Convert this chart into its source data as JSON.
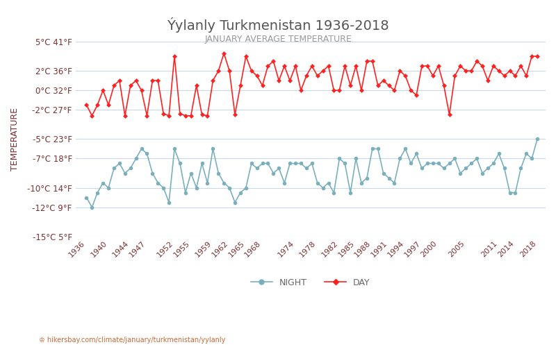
{
  "title": "Ýylanly Turkmenistan 1936-2018",
  "subtitle": "JANUARY AVERAGE TEMPERATURE",
  "ylabel": "TEMPERATURE",
  "url_text": "hikersbay.com/climate/january/turkmenistan/yylanly",
  "background_color": "#ffffff",
  "plot_bg_color": "#ffffff",
  "grid_color": "#c8d8e8",
  "day_color": "#ff2020",
  "night_color": "#7ab0be",
  "title_color": "#555555",
  "subtitle_color": "#888888",
  "ylabel_color": "#7a3030",
  "tick_label_color": "#7a3030",
  "legend_night_color": "#7ab0be",
  "legend_day_color": "#ff2020",
  "ylim": [
    -15,
    5
  ],
  "yticks_celsius": [
    -15,
    -12,
    -10,
    -7,
    -5,
    -2,
    0,
    2,
    5
  ],
  "ytick_labels": [
    "-15°C 5°F",
    "-12°C 9°F",
    "-10°C 14°F",
    "-7°C 18°F",
    "-5°C 23°F",
    "-2°C 27°F",
    "0°C 32°F",
    "2°C 36°F",
    "5°C 41°F"
  ],
  "xtick_years": [
    1936,
    1940,
    1944,
    1947,
    1952,
    1955,
    1959,
    1962,
    1965,
    1968,
    1974,
    1978,
    1982,
    1985,
    1988,
    1991,
    1994,
    1997,
    2000,
    2005,
    2011,
    2014,
    2018
  ],
  "day_years": [
    1936,
    1937,
    1938,
    1939,
    1940,
    1941,
    1942,
    1943,
    1944,
    1945,
    1946,
    1947,
    1948,
    1949,
    1950,
    1951,
    1952,
    1953,
    1954,
    1955,
    1956,
    1957,
    1958,
    1959,
    1960,
    1961,
    1962,
    1963,
    1964,
    1965,
    1966,
    1967,
    1968,
    1969,
    1970,
    1971,
    1972,
    1973,
    1974,
    1975,
    1976,
    1977,
    1978,
    1979,
    1980,
    1981,
    1982,
    1983,
    1984,
    1985,
    1986,
    1987,
    1988,
    1989,
    1990,
    1991,
    1992,
    1993,
    1994,
    1995,
    1996,
    1997,
    1998,
    1999,
    2000,
    2001,
    2002,
    2003,
    2004,
    2005,
    2006,
    2007,
    2008,
    2009,
    2010,
    2011,
    2012,
    2013,
    2014,
    2015,
    2016,
    2017,
    2018
  ],
  "day_temps": [
    -1.5,
    -2.6,
    -1.5,
    0.0,
    -1.5,
    0.5,
    1.0,
    -2.6,
    0.5,
    1.0,
    0.0,
    -2.6,
    1.0,
    1.0,
    -2.4,
    -2.6,
    3.5,
    -2.4,
    -2.6,
    -2.6,
    0.5,
    -2.5,
    -2.6,
    1.0,
    2.0,
    3.8,
    2.0,
    -2.5,
    0.5,
    3.5,
    2.0,
    1.5,
    0.5,
    2.5,
    3.0,
    1.0,
    2.5,
    1.0,
    2.5,
    0.0,
    1.5,
    2.5,
    1.5,
    2.0,
    2.5,
    0.0,
    0.0,
    2.5,
    0.5,
    2.5,
    0.0,
    3.0,
    3.0,
    0.5,
    1.0,
    0.5,
    0.0,
    2.0,
    1.5,
    0.0,
    -0.5,
    2.5,
    2.5,
    1.5,
    2.5,
    0.5,
    -2.5,
    1.5,
    2.5,
    2.0,
    2.0,
    3.0,
    2.5,
    1.0,
    2.5,
    2.0,
    1.5,
    2.0,
    1.5,
    2.5,
    1.5,
    3.5,
    3.5
  ],
  "night_years": [
    1936,
    1937,
    1938,
    1939,
    1940,
    1941,
    1942,
    1943,
    1944,
    1945,
    1946,
    1947,
    1948,
    1949,
    1950,
    1951,
    1952,
    1953,
    1954,
    1955,
    1956,
    1957,
    1958,
    1959,
    1960,
    1961,
    1962,
    1963,
    1964,
    1965,
    1966,
    1967,
    1968,
    1969,
    1970,
    1971,
    1972,
    1973,
    1974,
    1975,
    1976,
    1977,
    1978,
    1979,
    1980,
    1981,
    1982,
    1983,
    1984,
    1985,
    1986,
    1987,
    1988,
    1989,
    1990,
    1991,
    1992,
    1993,
    1994,
    1995,
    1996,
    1997,
    1998,
    1999,
    2000,
    2001,
    2002,
    2003,
    2004,
    2005,
    2006,
    2007,
    2008,
    2009,
    2010,
    2011,
    2012,
    2013,
    2014,
    2015,
    2016,
    2017,
    2018
  ],
  "night_temps": [
    -11.0,
    -12.0,
    -10.5,
    -9.5,
    -10.0,
    -8.0,
    -7.5,
    -8.5,
    -8.0,
    -7.0,
    -6.0,
    -6.5,
    -8.5,
    -9.5,
    -10.0,
    -11.5,
    -6.0,
    -7.5,
    -10.5,
    -8.5,
    -10.0,
    -7.5,
    -9.5,
    -6.0,
    -8.5,
    -9.5,
    -10.0,
    -11.5,
    -10.5,
    -10.0,
    -7.5,
    -8.0,
    -7.5,
    -7.5,
    -8.5,
    -8.0,
    -9.5,
    -7.5,
    -7.5,
    -7.5,
    -8.0,
    -7.5,
    -9.5,
    -10.0,
    -9.5,
    -10.5,
    -7.0,
    -7.5,
    -10.5,
    -7.0,
    -9.5,
    -9.0,
    -6.0,
    -6.0,
    -8.5,
    -9.0,
    -9.5,
    -7.0,
    -6.0,
    -7.5,
    -6.5,
    -8.0,
    -7.5,
    -7.5,
    -7.5,
    -8.0,
    -7.5,
    -7.0,
    -8.5,
    -8.0,
    -7.5,
    -7.0,
    -8.5,
    -8.0,
    -7.5,
    -6.5,
    -8.0,
    -10.5,
    -10.5,
    -8.0,
    -6.5,
    -7.0,
    -5.0
  ]
}
